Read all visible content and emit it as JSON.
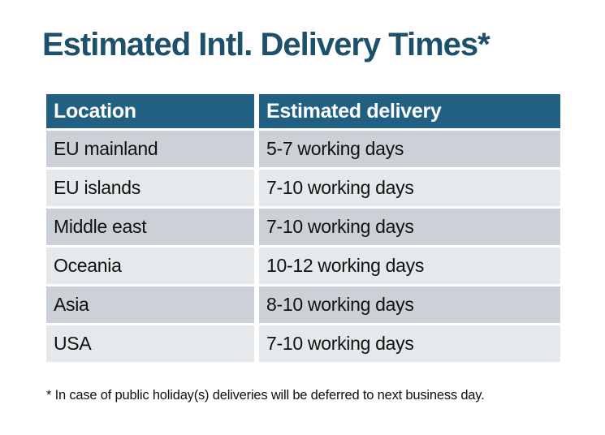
{
  "chart_data": {
    "type": "table",
    "title": "Estimated Intl. Delivery Times*",
    "columns": [
      "Location",
      "Estimated delivery"
    ],
    "rows": [
      [
        "EU mainland",
        "5-7 working days"
      ],
      [
        "EU islands",
        "7-10 working days"
      ],
      [
        "Middle east",
        "7-10 working days"
      ],
      [
        "Oceania",
        "10-12 working days"
      ],
      [
        "Asia",
        "8-10 working days"
      ],
      [
        "USA",
        "7-10 working days"
      ]
    ],
    "footnote": "* In case of public holiday(s) deliveries will be deferred to next business day.",
    "layout": {
      "legend": "none",
      "grid": "banded-rows",
      "header_position": "top"
    }
  },
  "style": {
    "page_background": "#ffffff",
    "title_color": "#1d506b",
    "header_bg": "#215f83",
    "header_text_color": "#ffffff",
    "row_odd_bg": "#ccd1d8",
    "row_even_bg": "#e6e9eb",
    "body_text_color": "#111111",
    "footnote_color": "#111111"
  }
}
